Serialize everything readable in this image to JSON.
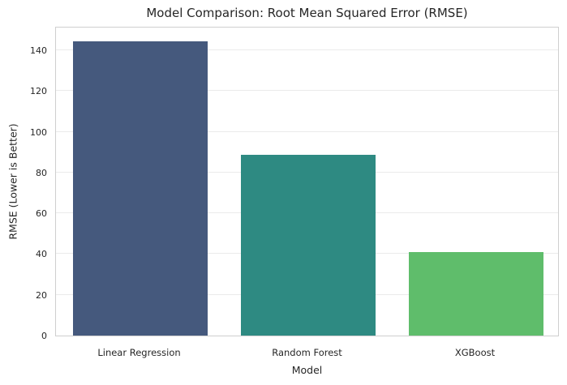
{
  "chart_data": {
    "type": "bar",
    "title": "Model Comparison: Root Mean Squared Error (RMSE)",
    "xlabel": "Model",
    "ylabel": "RMSE (Lower is Better)",
    "categories": [
      "Linear Regression",
      "Random Forest",
      "XGBoost"
    ],
    "values": [
      144.4,
      88.9,
      41.1
    ],
    "yticks": [
      0,
      20,
      40,
      60,
      80,
      100,
      120,
      140
    ],
    "ylim": [
      0,
      152
    ],
    "grid": true,
    "legend": "none",
    "bar_colors": [
      "#45597D",
      "#2E8A82",
      "#5FBD6B"
    ],
    "gridline_color": "#ebebeb",
    "spine_color": "#cfcfcf",
    "background_color": "#ffffff",
    "text_color": "#262626"
  }
}
